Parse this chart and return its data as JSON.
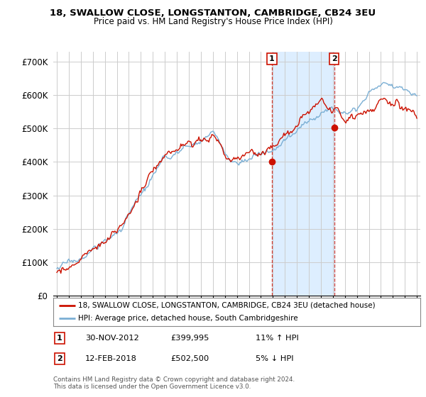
{
  "title_line1": "18, SWALLOW CLOSE, LONGSTANTON, CAMBRIDGE, CB24 3EU",
  "title_line2": "Price paid vs. HM Land Registry's House Price Index (HPI)",
  "ylabel_ticks": [
    "£0",
    "£100K",
    "£200K",
    "£300K",
    "£400K",
    "£500K",
    "£600K",
    "£700K"
  ],
  "ytick_values": [
    0,
    100000,
    200000,
    300000,
    400000,
    500000,
    600000,
    700000
  ],
  "ylim": [
    0,
    730000
  ],
  "xlim_start": 1994.7,
  "xlim_end": 2025.3,
  "hpi_color": "#7bafd4",
  "price_color": "#cc1100",
  "sale1_year": 2012.92,
  "sale1_price": 399995,
  "sale2_year": 2018.12,
  "sale2_price": 502500,
  "shade_color": "#ddeeff",
  "vline_color": "#cc1100",
  "legend_label1": "18, SWALLOW CLOSE, LONGSTANTON, CAMBRIDGE, CB24 3EU (detached house)",
  "legend_label2": "HPI: Average price, detached house, South Cambridgeshire",
  "sale1_label": "1",
  "sale2_label": "2",
  "sale1_date": "30-NOV-2012",
  "sale1_amount": "£399,995",
  "sale1_hpi": "11% ↑ HPI",
  "sale2_date": "12-FEB-2018",
  "sale2_amount": "£502,500",
  "sale2_hpi": "5% ↓ HPI",
  "footer": "Contains HM Land Registry data © Crown copyright and database right 2024.\nThis data is licensed under the Open Government Licence v3.0.",
  "bg_color": "#ffffff",
  "plot_bg_color": "#ffffff",
  "grid_color": "#cccccc"
}
